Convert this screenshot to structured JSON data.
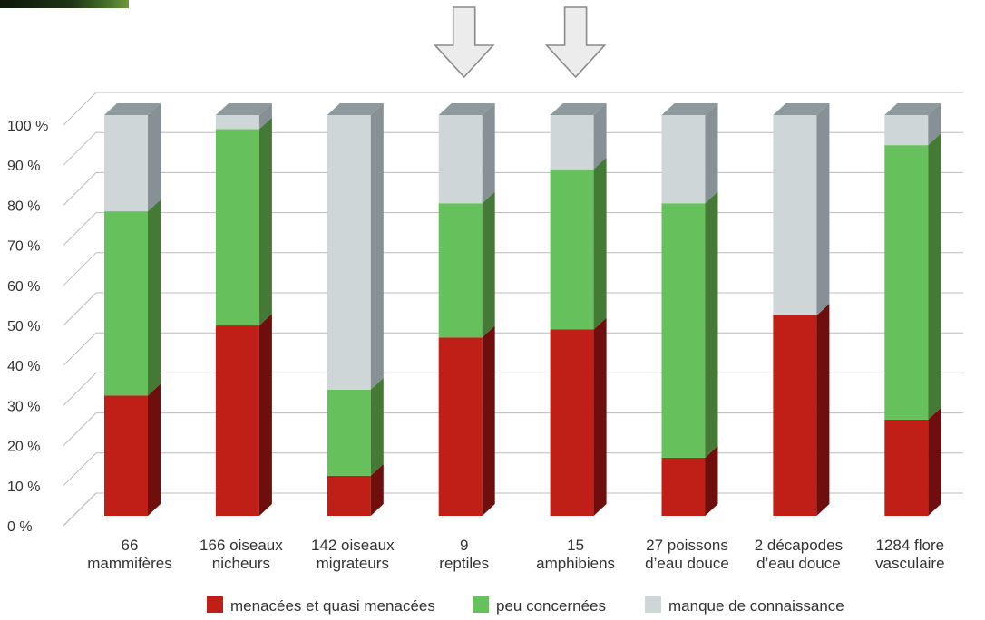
{
  "colors": {
    "threatened": "#bf1f17",
    "threatened_side": "#6e0f0e",
    "least_concern": "#66c15c",
    "least_concern_side": "#447a35",
    "data_deficient": "#cfd6d8",
    "data_deficient_side": "#869095",
    "bar_top": "#8e999d",
    "grid": "#bcbcbc",
    "floor": "#d0d0d0",
    "arrow_fill": "#ececec",
    "arrow_stroke": "#8a8a8a"
  },
  "decor": {
    "top_left_photo": "forest-photo-fragment",
    "arrows_over": [
      3,
      4
    ],
    "arrow_icon": "down-arrow-icon"
  },
  "chart_data": {
    "type": "bar",
    "stacked": true,
    "three_d": true,
    "percent_stacked": true,
    "ylim": [
      0,
      100
    ],
    "yticks": [
      "0 %",
      "10 %",
      "20 %",
      "30 %",
      "40 %",
      "50 %",
      "60 %",
      "70 %",
      "80 %",
      "90 %",
      "100 %"
    ],
    "grid": true,
    "legend_position": "bottom",
    "categories": [
      [
        "66",
        "mammifères"
      ],
      [
        "166 oiseaux",
        "nicheurs"
      ],
      [
        "142 oiseaux",
        "migrateurs"
      ],
      [
        "9",
        "reptiles"
      ],
      [
        "15",
        "amphibiens"
      ],
      [
        "27 poissons",
        "d’eau douce"
      ],
      [
        "2 décapodes",
        "d’eau douce"
      ],
      [
        "1284 flore",
        "vasculaire"
      ]
    ],
    "series": [
      {
        "name": "menacées et quasi menacées",
        "color_key": "threatened",
        "values": [
          30,
          47.5,
          10,
          44.5,
          46.5,
          14.5,
          50,
          24
        ]
      },
      {
        "name": "peu concernées",
        "color_key": "least_concern",
        "values": [
          46,
          49,
          21.5,
          33.5,
          40,
          63.5,
          0,
          68.5
        ]
      },
      {
        "name": "manque de connaissance",
        "color_key": "data_deficient",
        "values": [
          24,
          3.5,
          68.5,
          22,
          13.5,
          22,
          50,
          7.5
        ]
      }
    ]
  }
}
